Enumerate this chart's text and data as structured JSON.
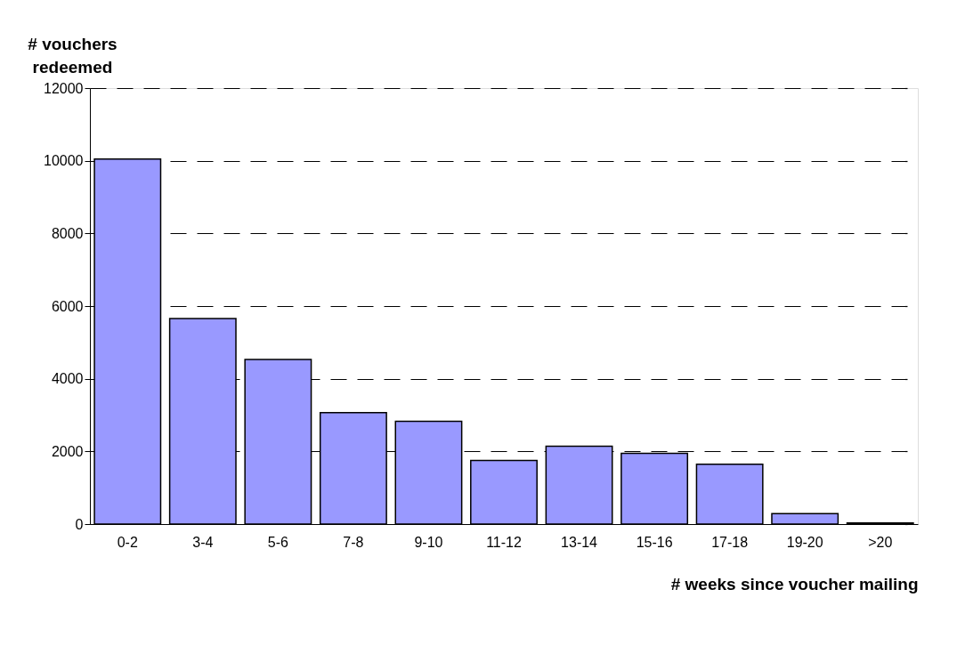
{
  "chart_data": {
    "type": "bar",
    "ylabel": "# vouchers redeemed",
    "xlabel": "# weeks since voucher mailing",
    "categories": [
      "0-2",
      "3-4",
      "5-6",
      "7-8",
      "9-10",
      "11-12",
      "13-14",
      "15-16",
      "17-18",
      "19-20",
      ">20"
    ],
    "series": [
      {
        "color": "#9999ff",
        "values": [
          10050,
          5660,
          4530,
          3070,
          2830,
          1750,
          2140,
          1950,
          1650,
          290,
          30
        ]
      }
    ],
    "ylim": [
      0,
      12000
    ],
    "yticks": [
      0,
      2000,
      4000,
      6000,
      8000,
      10000,
      12000
    ],
    "grid": "y",
    "line_style": "dashed"
  }
}
